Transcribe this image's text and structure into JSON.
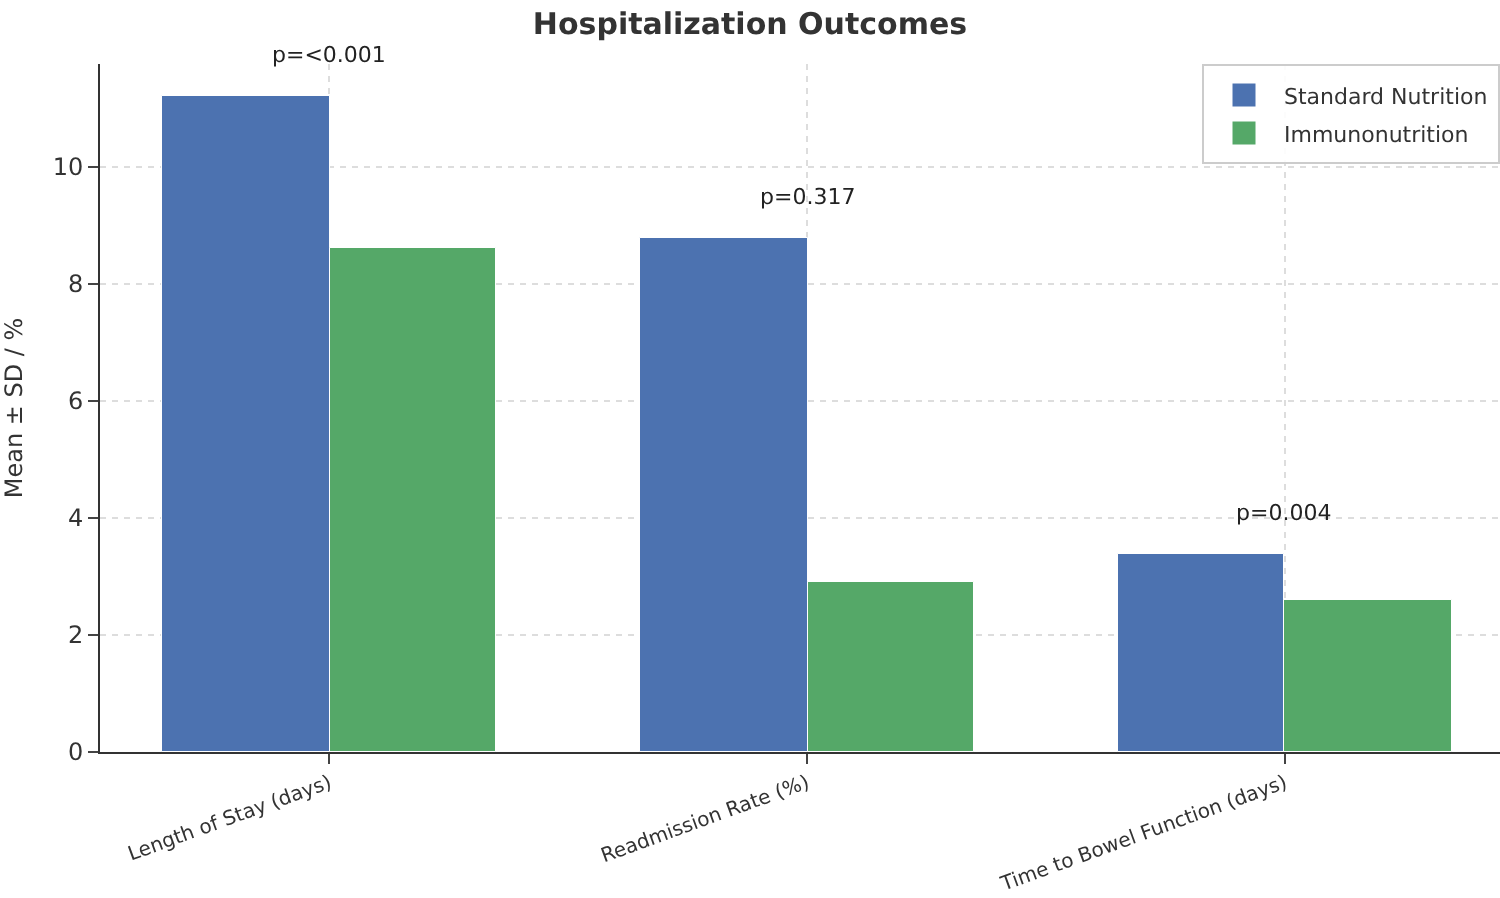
{
  "chart_data": {
    "type": "bar",
    "title": "Hospitalization Outcomes",
    "ylabel": "Mean ± SD / %",
    "categories": [
      "Length of Stay (days)",
      "Readmission Rate (%)",
      "Time to Bowel Function (days)"
    ],
    "series": [
      {
        "name": "Standard Nutrition",
        "color": "#4c72b0",
        "values": [
          11.2,
          8.8,
          3.4
        ]
      },
      {
        "name": "Immunonutrition",
        "color": "#55a868",
        "values": [
          8.6,
          2.9,
          2.6
        ]
      }
    ],
    "annotations": [
      "p=<0.001",
      "p=0.317",
      "p=0.004"
    ],
    "ylim": [
      0,
      11.76
    ],
    "yticks": [
      0,
      2,
      4,
      6,
      8,
      10
    ],
    "grid": true,
    "legend": "top right"
  }
}
